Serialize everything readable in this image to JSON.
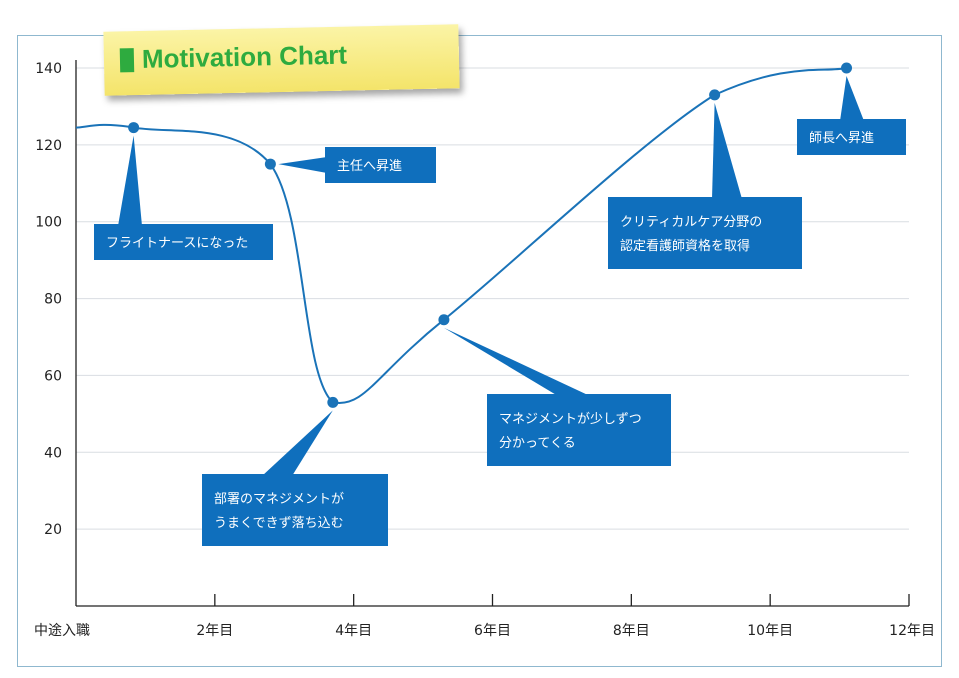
{
  "chart_data": {
    "type": "line",
    "title": "Motivation Chart",
    "xlabel": "",
    "ylabel": "",
    "xlim": [
      0,
      12
    ],
    "ylim": [
      0,
      140
    ],
    "x_ticks": [
      {
        "x": 0,
        "label": "中途入職"
      },
      {
        "x": 2,
        "label": "2年目"
      },
      {
        "x": 4,
        "label": "4年目"
      },
      {
        "x": 6,
        "label": "6年目"
      },
      {
        "x": 8,
        "label": "8年目"
      },
      {
        "x": 10,
        "label": "10年目"
      },
      {
        "x": 12,
        "label": "12年目"
      }
    ],
    "y_ticks": [
      20,
      40,
      60,
      80,
      100,
      120,
      140
    ],
    "grid": true,
    "series": [
      {
        "color": "#1a73b8",
        "x": [
          0,
          0.83,
          2.8,
          3.7,
          5.3,
          9.2,
          11.1
        ],
        "y": [
          124.5,
          124.5,
          115,
          53,
          74.5,
          133,
          140
        ]
      }
    ],
    "markers": [
      {
        "x": 0.83,
        "y": 124.5
      },
      {
        "x": 2.8,
        "y": 115
      },
      {
        "x": 3.7,
        "y": 53
      },
      {
        "x": 5.3,
        "y": 74.5
      },
      {
        "x": 9.2,
        "y": 133
      },
      {
        "x": 11.1,
        "y": 140
      }
    ],
    "annotations": [
      {
        "lines": [
          "フライトナースになった"
        ],
        "point": 0
      },
      {
        "lines": [
          "主任へ昇進"
        ],
        "point": 1
      },
      {
        "lines": [
          "部署のマネジメントが",
          "うまくできず落ち込む"
        ],
        "point": 2
      },
      {
        "lines": [
          "マネジメントが少しずつ",
          "分かってくる"
        ],
        "point": 3
      },
      {
        "lines": [
          "クリティカルケア分野の",
          "認定看護師資格を取得"
        ],
        "point": 4
      },
      {
        "lines": [
          "師長へ昇進"
        ],
        "point": 5
      }
    ]
  }
}
